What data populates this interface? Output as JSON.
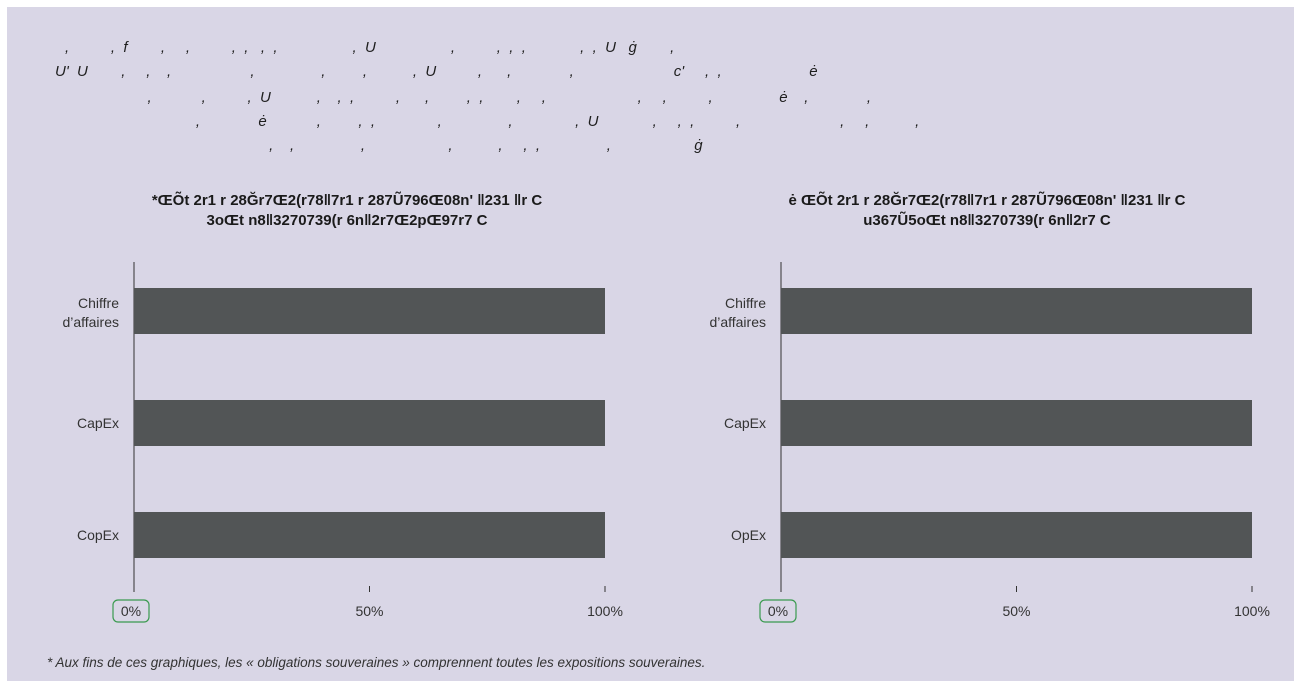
{
  "intro": {
    "lines": [
      ",          ,  f        ,     ,          ,  ,   ,  ,                  ,  U                  ,          ,  ,  ,             ,  ,  U   ġ        ,",
      "U'  U        ,     ,    ,                   ,                ,         ,           ,  U          ,      ,              ,                        c'     ,  ,                     ė",
      "         ,            ,          ,  U           ,    ,  ,          ,      ,         ,  ,        ,     ,                      ,     ,          ,                ė    ,              ,",
      "           ,              ė            ,         ,  ,               ,                ,               ,  U             ,     ,  ,          ,                        ,     ,           ,",
      "                   ,    ,                ,                    ,           ,     ,  ,                ,                    ġ"
    ]
  },
  "charts": [
    {
      "title_line1": "*ŒÕt 2r1 r 28Ğr7Œ2(r78ǁ7r1 r 287Ũ796Œ08n' ǁ231 ǁr C",
      "title_line2": "3oŒt n8ǁ3270739(r 6nǁ2r7Œ2pŒ97r7 C"
    },
    {
      "title_line1": "ė ŒÕt 2r1 r 28Ğr7Œ2(r78ǁ7r1 r 287Ũ796Œ08n' ǁ231 ǁr C",
      "title_line2": "u367Ũ5oŒt n8ǁ3270739(r 6nǁ2r7 C"
    }
  ],
  "chart_data": [
    {
      "type": "bar",
      "orientation": "horizontal",
      "categories": [
        "Chiffre d’affaires",
        "CapEx",
        "CopEx"
      ],
      "values": [
        100,
        100,
        100
      ],
      "xlim": [
        0,
        100
      ],
      "x_ticks": [
        "0%",
        "50%",
        "100%"
      ],
      "bar_color": "#525556",
      "highlight_tick": "0%",
      "highlight_color": "#3a9a4f"
    },
    {
      "type": "bar",
      "orientation": "horizontal",
      "categories": [
        "Chiffre d’affaires",
        "CapEx",
        "OpEx"
      ],
      "values": [
        100,
        100,
        100
      ],
      "xlim": [
        0,
        100
      ],
      "x_ticks": [
        "0%",
        "50%",
        "100%"
      ],
      "bar_color": "#525556",
      "highlight_tick": "0%",
      "highlight_color": "#3a9a4f"
    }
  ],
  "footnote": "*  Aux fins de ces graphiques, les « obligations souveraines » comprennent toutes les expositions souveraines."
}
